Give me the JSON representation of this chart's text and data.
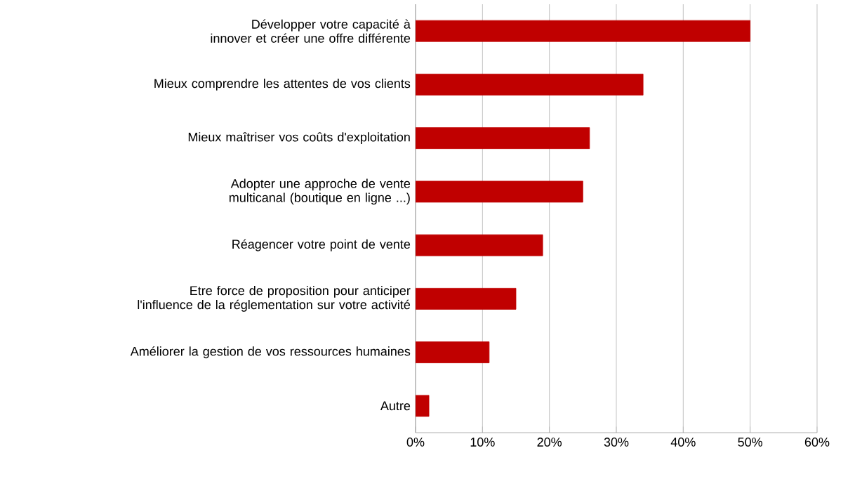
{
  "chart_data": {
    "type": "bar",
    "orientation": "horizontal",
    "categories": [
      "Développer votre capacité à innover et créer une offre différente",
      "Mieux comprendre les attentes de vos clients",
      "Mieux maîtriser vos coûts d'exploitation",
      "Adopter une approche de vente multicanal (boutique en ligne ...)",
      "Réagencer votre point de vente",
      "Etre force de proposition pour anticiper l'influence de la réglementation sur votre activité",
      "Améliorer la gestion de vos ressources humaines",
      "Autre"
    ],
    "values": [
      50,
      34,
      26,
      25,
      19,
      15,
      11,
      2
    ],
    "color": "#c00000",
    "xlim": [
      0,
      60
    ],
    "xticks": [
      {
        "value": 0,
        "label": "0%"
      },
      {
        "value": 10,
        "label": "10%"
      },
      {
        "value": 20,
        "label": "20%"
      },
      {
        "value": 30,
        "label": "30%"
      },
      {
        "value": 40,
        "label": "40%"
      },
      {
        "value": 50,
        "label": "50%"
      },
      {
        "value": 60,
        "label": "60%"
      }
    ],
    "grid": "x"
  }
}
